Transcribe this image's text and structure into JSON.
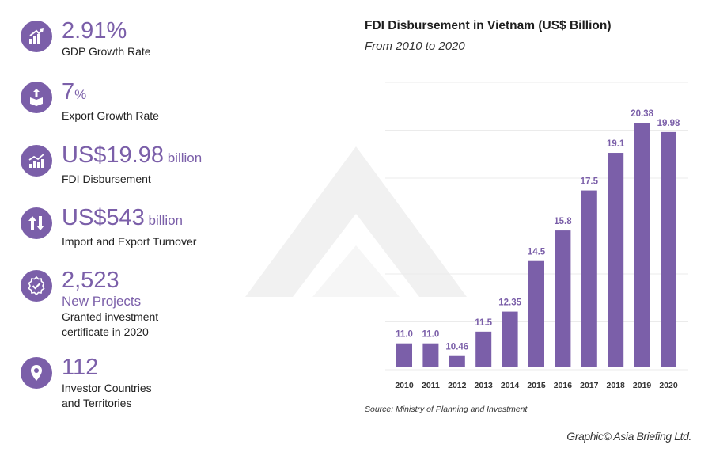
{
  "stats": [
    {
      "value": "2.91%",
      "unit": "",
      "sub": "",
      "label": [
        "GDP Growth Rate"
      ],
      "icon": "bar-growth-icon"
    },
    {
      "value": "7",
      "unit": "%",
      "sub": "",
      "label": [
        "Export Growth Rate"
      ],
      "icon": "export-box-icon"
    },
    {
      "value": "US$19.98",
      "unit": " billion",
      "sub": "",
      "label": [
        "FDI Disbursement"
      ],
      "icon": "line-bar-chart-icon"
    },
    {
      "value": "US$543",
      "unit": " billion",
      "sub": "",
      "label": [
        "Import and Export Turnover"
      ],
      "icon": "up-down-arrows-icon"
    },
    {
      "value": "2,523",
      "unit": "",
      "sub": "New Projects",
      "label": [
        "Granted investment",
        "certificate in 2020"
      ],
      "icon": "certificate-badge-icon"
    },
    {
      "value": "112",
      "unit": "",
      "sub": "",
      "label": [
        "Investor Countries",
        "and Territories"
      ],
      "icon": "location-pin-icon"
    }
  ],
  "chart_data": {
    "type": "bar",
    "title": "FDI Disbursement in Vietnam (US$ Billion)",
    "subtitle": "From 2010 to 2020",
    "categories": [
      "2010",
      "2011",
      "2012",
      "2013",
      "2014",
      "2015",
      "2016",
      "2017",
      "2018",
      "2019",
      "2020"
    ],
    "values": [
      11.0,
      11.0,
      10.46,
      11.5,
      12.35,
      14.5,
      15.8,
      17.5,
      19.1,
      20.38,
      19.98
    ],
    "data_labels": [
      "11.0",
      "11.0",
      "10.46",
      "11.5",
      "12.35",
      "14.5",
      "15.8",
      "17.5",
      "19.1",
      "20.38",
      "19.98"
    ],
    "xlabel": "",
    "ylabel": "",
    "ylim": [
      10,
      21
    ],
    "grid": true,
    "bar_color": "#7b5fa9",
    "label_color": "#7b5fa9"
  },
  "source": "Source: Ministry of Planning and Investment",
  "credit": "Graphic© Asia Briefing Ltd.",
  "colors": {
    "accent": "#7b5fa9",
    "watermark": "#f1f1f1",
    "grid": "#ebebeb"
  }
}
